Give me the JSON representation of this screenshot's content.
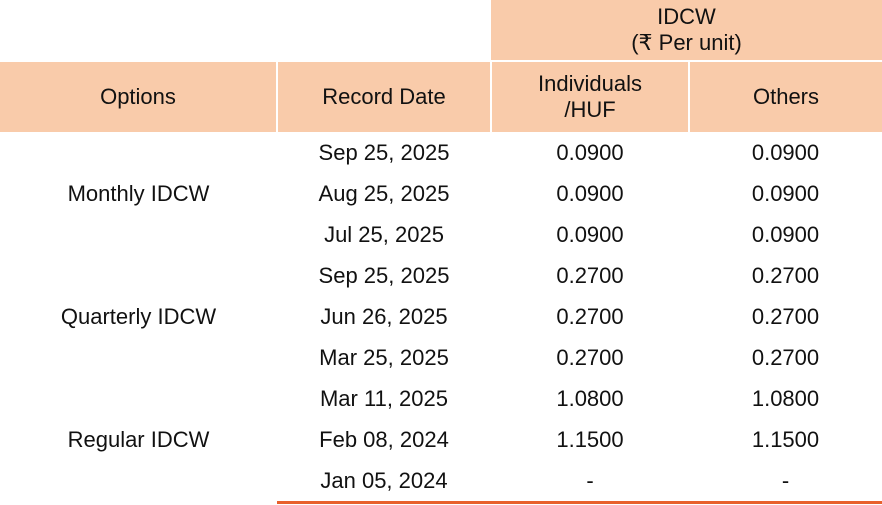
{
  "header": {
    "group_title": "IDCW",
    "group_subtitle": "(₹ Per unit)",
    "columns": [
      "Options",
      "Record Date",
      [
        "Individuals",
        "/HUF"
      ],
      "Others"
    ]
  },
  "groups": [
    {
      "option": "Monthly IDCW",
      "rows": [
        [
          "Sep 25, 2025",
          "0.0900",
          "0.0900"
        ],
        [
          "Aug 25, 2025",
          "0.0900",
          "0.0900"
        ],
        [
          "Jul 25, 2025",
          "0.0900",
          "0.0900"
        ]
      ]
    },
    {
      "option": "Quarterly IDCW",
      "rows": [
        [
          "Sep 25, 2025",
          "0.2700",
          "0.2700"
        ],
        [
          "Jun 26, 2025",
          "0.2700",
          "0.2700"
        ],
        [
          "Mar 25, 2025",
          "0.2700",
          "0.2700"
        ]
      ]
    },
    {
      "option": "Regular IDCW",
      "rows": [
        [
          "Mar 11, 2025",
          "1.0800",
          "1.0800"
        ],
        [
          "Feb 08, 2024",
          "1.1500",
          "1.1500"
        ],
        [
          "Jan 05, 2024",
          "-",
          "-"
        ]
      ]
    }
  ]
}
